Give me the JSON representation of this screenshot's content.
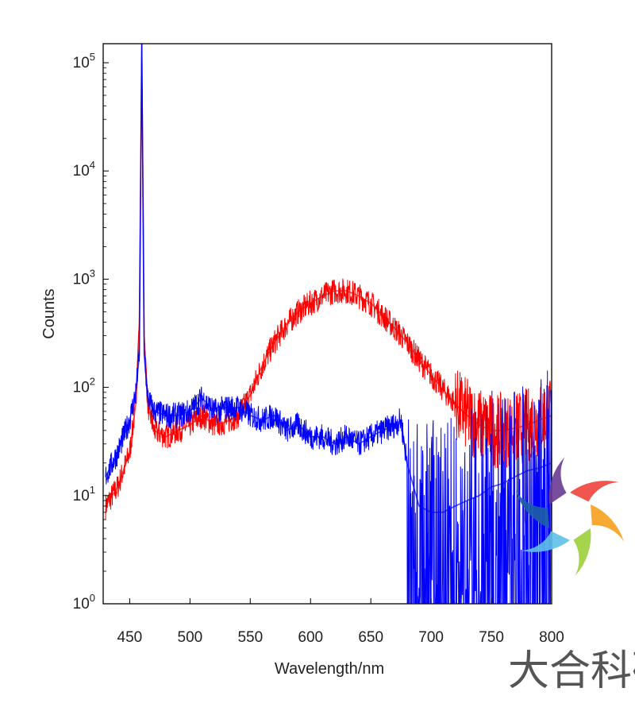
{
  "chart_data": {
    "type": "line",
    "title": "",
    "xlabel": "Wavelength/nm",
    "ylabel": "Counts",
    "xlim": [
      428,
      800
    ],
    "ylim": [
      1,
      150000
    ],
    "yscale": "log",
    "grid": false,
    "legend": "none",
    "x_ticks": [
      450,
      500,
      550,
      600,
      650,
      700,
      750,
      800
    ],
    "x_tick_labels": [
      "450",
      "500",
      "550",
      "600",
      "650",
      "700",
      "750",
      "800"
    ],
    "y_ticks": [
      1,
      10,
      100,
      1000,
      10000,
      100000
    ],
    "y_tick_labels": [
      {
        "base": "10",
        "exp": "0"
      },
      {
        "base": "10",
        "exp": "1"
      },
      {
        "base": "10",
        "exp": "2"
      },
      {
        "base": "10",
        "exp": "3"
      },
      {
        "base": "10",
        "exp": "4"
      },
      {
        "base": "10",
        "exp": "5"
      }
    ],
    "series": [
      {
        "color": "#ff0000",
        "x": [
          430,
          440,
          450,
          455,
          458,
          460,
          462,
          465,
          470,
          480,
          490,
          500,
          510,
          520,
          530,
          540,
          550,
          560,
          570,
          580,
          590,
          600,
          610,
          620,
          630,
          640,
          650,
          660,
          670,
          680,
          690,
          700,
          710,
          720,
          730,
          740,
          750,
          760,
          770,
          780,
          790,
          800
        ],
        "y": [
          8,
          12,
          25,
          70,
          400,
          150000,
          300,
          70,
          40,
          35,
          40,
          45,
          55,
          45,
          48,
          55,
          85,
          160,
          260,
          380,
          500,
          600,
          700,
          780,
          780,
          700,
          600,
          460,
          350,
          260,
          180,
          130,
          95,
          70,
          55,
          45,
          40,
          40,
          42,
          45,
          50,
          55
        ]
      },
      {
        "color": "#0000ff",
        "x": [
          430,
          440,
          450,
          455,
          458,
          460,
          462,
          465,
          470,
          480,
          490,
          500,
          510,
          520,
          530,
          540,
          550,
          560,
          570,
          580,
          590,
          600,
          610,
          620,
          630,
          640,
          650,
          660,
          670,
          675,
          680,
          690,
          700,
          710,
          720,
          730,
          740,
          750,
          760,
          770,
          780,
          790,
          800
        ],
        "y": [
          15,
          25,
          50,
          90,
          200,
          150000,
          200,
          80,
          60,
          55,
          55,
          60,
          80,
          60,
          65,
          65,
          55,
          50,
          55,
          40,
          45,
          35,
          35,
          30,
          35,
          30,
          35,
          40,
          45,
          50,
          20,
          8,
          7,
          7,
          8,
          9,
          10,
          12,
          13,
          15,
          17,
          18,
          20
        ]
      }
    ],
    "watermark": {
      "text": "大合科研",
      "logo_colors": [
        "#f1423a",
        "#f7a01d",
        "#9ccf3b",
        "#5ec1e8",
        "#1d5fa5",
        "#6a3a93"
      ]
    }
  }
}
